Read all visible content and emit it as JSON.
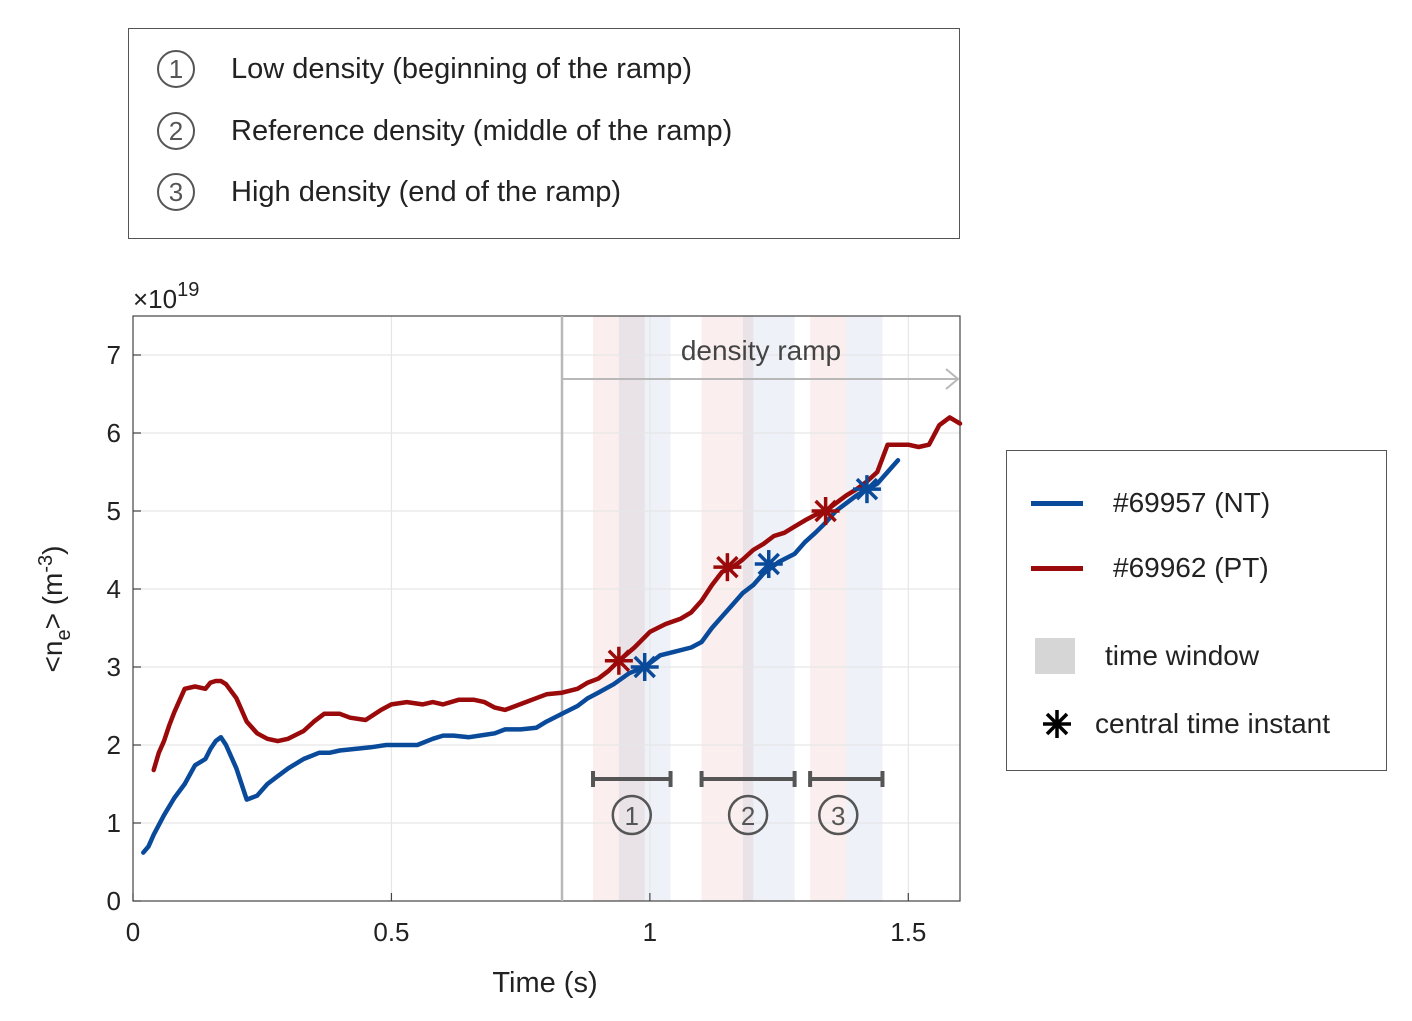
{
  "top_legend": {
    "items": [
      {
        "num": "1",
        "label": "Low density (beginning of the ramp)"
      },
      {
        "num": "2",
        "label": "Reference density (middle of the ramp)"
      },
      {
        "num": "3",
        "label": "High density (end of the ramp)"
      }
    ]
  },
  "right_legend": {
    "items": [
      {
        "label": "#69957 (NT)",
        "color": "#0a4a9a"
      },
      {
        "label": "#69962 (PT)",
        "color": "#9a0a0a"
      },
      {
        "label": "time window",
        "color": "#d6d6d6"
      },
      {
        "label": "central time instant",
        "color": "#000000"
      }
    ]
  },
  "chart_data": {
    "type": "line",
    "xlabel": "Time (s)",
    "ylabel_main": "<n",
    "ylabel_sub": "e",
    "ylabel_mid": "> (m",
    "ylabel_sup": "-3",
    "ylabel_end": ")",
    "exponent_base": "×10",
    "exponent_power": "19",
    "xlim": [
      0,
      1.6
    ],
    "ylim": [
      0,
      7.5
    ],
    "xticks": [
      0,
      0.5,
      1,
      1.5
    ],
    "xtick_labels": [
      "0",
      "0.5",
      "1",
      "1.5"
    ],
    "yticks": [
      0,
      1,
      2,
      3,
      4,
      5,
      6,
      7
    ],
    "ytick_labels": [
      "0",
      "1",
      "2",
      "3",
      "4",
      "5",
      "6",
      "7"
    ],
    "grid": true,
    "annotation": "density ramp",
    "ramp_start": 0.83,
    "ramp_end": 1.6,
    "window_labels": [
      "1",
      "2",
      "3"
    ],
    "series": [
      {
        "name": "#69957 (NT)",
        "color": "#0a4a9a",
        "x": [
          0.02,
          0.03,
          0.04,
          0.06,
          0.08,
          0.1,
          0.12,
          0.14,
          0.15,
          0.16,
          0.17,
          0.18,
          0.2,
          0.22,
          0.24,
          0.26,
          0.28,
          0.3,
          0.33,
          0.36,
          0.38,
          0.4,
          0.43,
          0.46,
          0.49,
          0.52,
          0.55,
          0.58,
          0.6,
          0.62,
          0.65,
          0.68,
          0.7,
          0.72,
          0.75,
          0.78,
          0.8,
          0.83,
          0.86,
          0.88,
          0.9,
          0.93,
          0.96,
          0.99,
          1.02,
          1.05,
          1.08,
          1.1,
          1.12,
          1.14,
          1.16,
          1.18,
          1.2,
          1.22,
          1.25,
          1.28,
          1.3,
          1.32,
          1.34,
          1.36,
          1.38,
          1.4,
          1.42,
          1.44,
          1.46,
          1.48
        ],
        "values": [
          0.62,
          0.7,
          0.85,
          1.1,
          1.32,
          1.5,
          1.74,
          1.82,
          1.95,
          2.05,
          2.1,
          2.0,
          1.7,
          1.3,
          1.35,
          1.5,
          1.6,
          1.7,
          1.82,
          1.9,
          1.9,
          1.93,
          1.95,
          1.97,
          2.0,
          2.0,
          2.0,
          2.08,
          2.12,
          2.12,
          2.1,
          2.13,
          2.15,
          2.2,
          2.2,
          2.22,
          2.3,
          2.4,
          2.5,
          2.6,
          2.67,
          2.78,
          2.92,
          3.0,
          3.15,
          3.2,
          3.25,
          3.32,
          3.5,
          3.65,
          3.8,
          3.95,
          4.05,
          4.2,
          4.35,
          4.45,
          4.6,
          4.72,
          4.85,
          5.0,
          5.1,
          5.2,
          5.28,
          5.35,
          5.5,
          5.65
        ]
      },
      {
        "name": "#69962 (PT)",
        "color": "#9a0a0a",
        "x": [
          0.04,
          0.05,
          0.06,
          0.07,
          0.08,
          0.1,
          0.12,
          0.14,
          0.15,
          0.16,
          0.17,
          0.18,
          0.2,
          0.22,
          0.24,
          0.26,
          0.28,
          0.3,
          0.33,
          0.35,
          0.37,
          0.4,
          0.42,
          0.45,
          0.48,
          0.5,
          0.53,
          0.56,
          0.58,
          0.6,
          0.63,
          0.66,
          0.68,
          0.7,
          0.72,
          0.74,
          0.76,
          0.78,
          0.8,
          0.83,
          0.86,
          0.88,
          0.9,
          0.92,
          0.94,
          0.97,
          1.0,
          1.03,
          1.06,
          1.08,
          1.1,
          1.12,
          1.14,
          1.16,
          1.18,
          1.2,
          1.22,
          1.24,
          1.26,
          1.28,
          1.3,
          1.32,
          1.34,
          1.36,
          1.38,
          1.4,
          1.42,
          1.44,
          1.46,
          1.48,
          1.5,
          1.52,
          1.54,
          1.56,
          1.58,
          1.6
        ],
        "values": [
          1.68,
          1.9,
          2.05,
          2.25,
          2.42,
          2.72,
          2.75,
          2.72,
          2.8,
          2.82,
          2.82,
          2.78,
          2.6,
          2.3,
          2.15,
          2.08,
          2.05,
          2.08,
          2.18,
          2.3,
          2.4,
          2.4,
          2.35,
          2.32,
          2.45,
          2.52,
          2.55,
          2.52,
          2.55,
          2.52,
          2.58,
          2.58,
          2.55,
          2.48,
          2.45,
          2.5,
          2.55,
          2.6,
          2.65,
          2.67,
          2.72,
          2.8,
          2.85,
          2.95,
          3.08,
          3.25,
          3.45,
          3.55,
          3.62,
          3.7,
          3.85,
          4.05,
          4.22,
          4.28,
          4.38,
          4.5,
          4.58,
          4.68,
          4.72,
          4.8,
          4.88,
          4.95,
          5.0,
          5.1,
          5.2,
          5.28,
          5.38,
          5.5,
          5.85,
          5.85,
          5.85,
          5.82,
          5.85,
          6.1,
          6.2,
          6.12
        ]
      }
    ],
    "windows": [
      {
        "red": [
          0.89,
          0.99
        ],
        "blue": [
          0.94,
          1.04
        ],
        "bracket": [
          0.89,
          1.04
        ]
      },
      {
        "red": [
          1.1,
          1.2
        ],
        "blue": [
          1.18,
          1.28
        ],
        "bracket": [
          1.1,
          1.28
        ]
      },
      {
        "red": [
          1.31,
          1.38
        ],
        "blue": [
          1.38,
          1.45
        ],
        "bracket": [
          1.31,
          1.45
        ]
      }
    ],
    "markers": [
      {
        "series": "#69962 (PT)",
        "x": 0.94,
        "y": 3.08,
        "color": "#9a0a0a"
      },
      {
        "series": "#69957 (NT)",
        "x": 0.99,
        "y": 3.0,
        "color": "#0a4a9a"
      },
      {
        "series": "#69962 (PT)",
        "x": 1.15,
        "y": 4.28,
        "color": "#9a0a0a"
      },
      {
        "series": "#69957 (NT)",
        "x": 1.23,
        "y": 4.32,
        "color": "#0a4a9a"
      },
      {
        "series": "#69962 (PT)",
        "x": 1.34,
        "y": 5.0,
        "color": "#9a0a0a"
      },
      {
        "series": "#69957 (NT)",
        "x": 1.42,
        "y": 5.28,
        "color": "#0a4a9a"
      }
    ]
  }
}
